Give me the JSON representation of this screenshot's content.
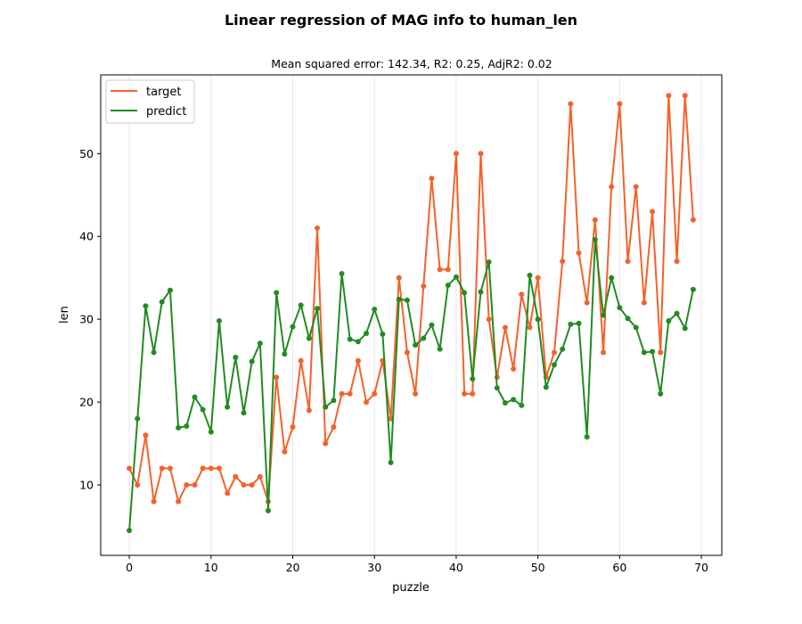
{
  "chart_data": {
    "type": "line",
    "title": "Linear regression of MAG info to human_len",
    "subtitle": "Mean squared error: 142.34, R2: 0.25, AdjR2: 0.02",
    "xlabel": "puzzle",
    "ylabel": "len",
    "xlim": [
      -3.5,
      72.5
    ],
    "ylim": [
      1.5,
      59.5
    ],
    "xticks": [
      0,
      10,
      20,
      30,
      40,
      50,
      60,
      70
    ],
    "yticks": [
      10,
      20,
      30,
      40,
      50
    ],
    "grid": "vertical",
    "legend_position": "upper-left",
    "x": [
      0,
      1,
      2,
      3,
      4,
      5,
      6,
      7,
      8,
      9,
      10,
      11,
      12,
      13,
      14,
      15,
      16,
      17,
      18,
      19,
      20,
      21,
      22,
      23,
      24,
      25,
      26,
      27,
      28,
      29,
      30,
      31,
      32,
      33,
      34,
      35,
      36,
      37,
      38,
      39,
      40,
      41,
      42,
      43,
      44,
      45,
      46,
      47,
      48,
      49,
      50,
      51,
      52,
      53,
      54,
      55,
      56,
      57,
      58,
      59,
      60,
      61,
      62,
      63,
      64,
      65,
      66,
      67,
      68,
      69
    ],
    "series": [
      {
        "name": "target",
        "color": "#f4622a",
        "values": [
          12,
          10,
          16,
          8,
          12,
          12,
          8,
          10,
          10,
          12,
          12,
          12,
          9,
          11,
          10,
          10,
          11,
          8,
          23,
          14,
          17,
          25,
          19,
          41,
          15,
          17,
          21,
          21,
          25,
          20,
          21,
          25,
          18,
          35,
          26,
          21,
          34,
          47,
          36,
          36,
          50,
          21,
          21,
          50,
          30,
          23,
          29,
          24,
          33,
          29,
          35,
          23,
          26,
          37,
          56,
          38,
          32,
          42,
          26,
          46,
          56,
          37,
          46,
          32,
          43,
          26,
          57,
          37,
          57,
          42
        ]
      },
      {
        "name": "predict",
        "color": "#228b22",
        "values": [
          4.5,
          18,
          31.6,
          26,
          32.1,
          33.5,
          16.9,
          17.1,
          20.6,
          19.1,
          16.4,
          29.8,
          19.4,
          25.4,
          18.7,
          24.9,
          27.1,
          6.9,
          33.2,
          25.8,
          29.1,
          31.7,
          27.7,
          31.3,
          19.4,
          20.2,
          35.5,
          27.6,
          27.3,
          28.3,
          31.2,
          28.2,
          12.7,
          32.4,
          32.3,
          26.9,
          27.7,
          29.3,
          26.4,
          34.1,
          35.1,
          33.2,
          22.8,
          33.3,
          36.9,
          21.7,
          19.9,
          20.3,
          19.6,
          35.3,
          30,
          21.8,
          24.5,
          26.4,
          29.4,
          29.5,
          15.8,
          39.6,
          30.5,
          35,
          31.4,
          30.1,
          29,
          26,
          26.1,
          21,
          29.8,
          30.7,
          28.9,
          33.6
        ]
      }
    ]
  }
}
